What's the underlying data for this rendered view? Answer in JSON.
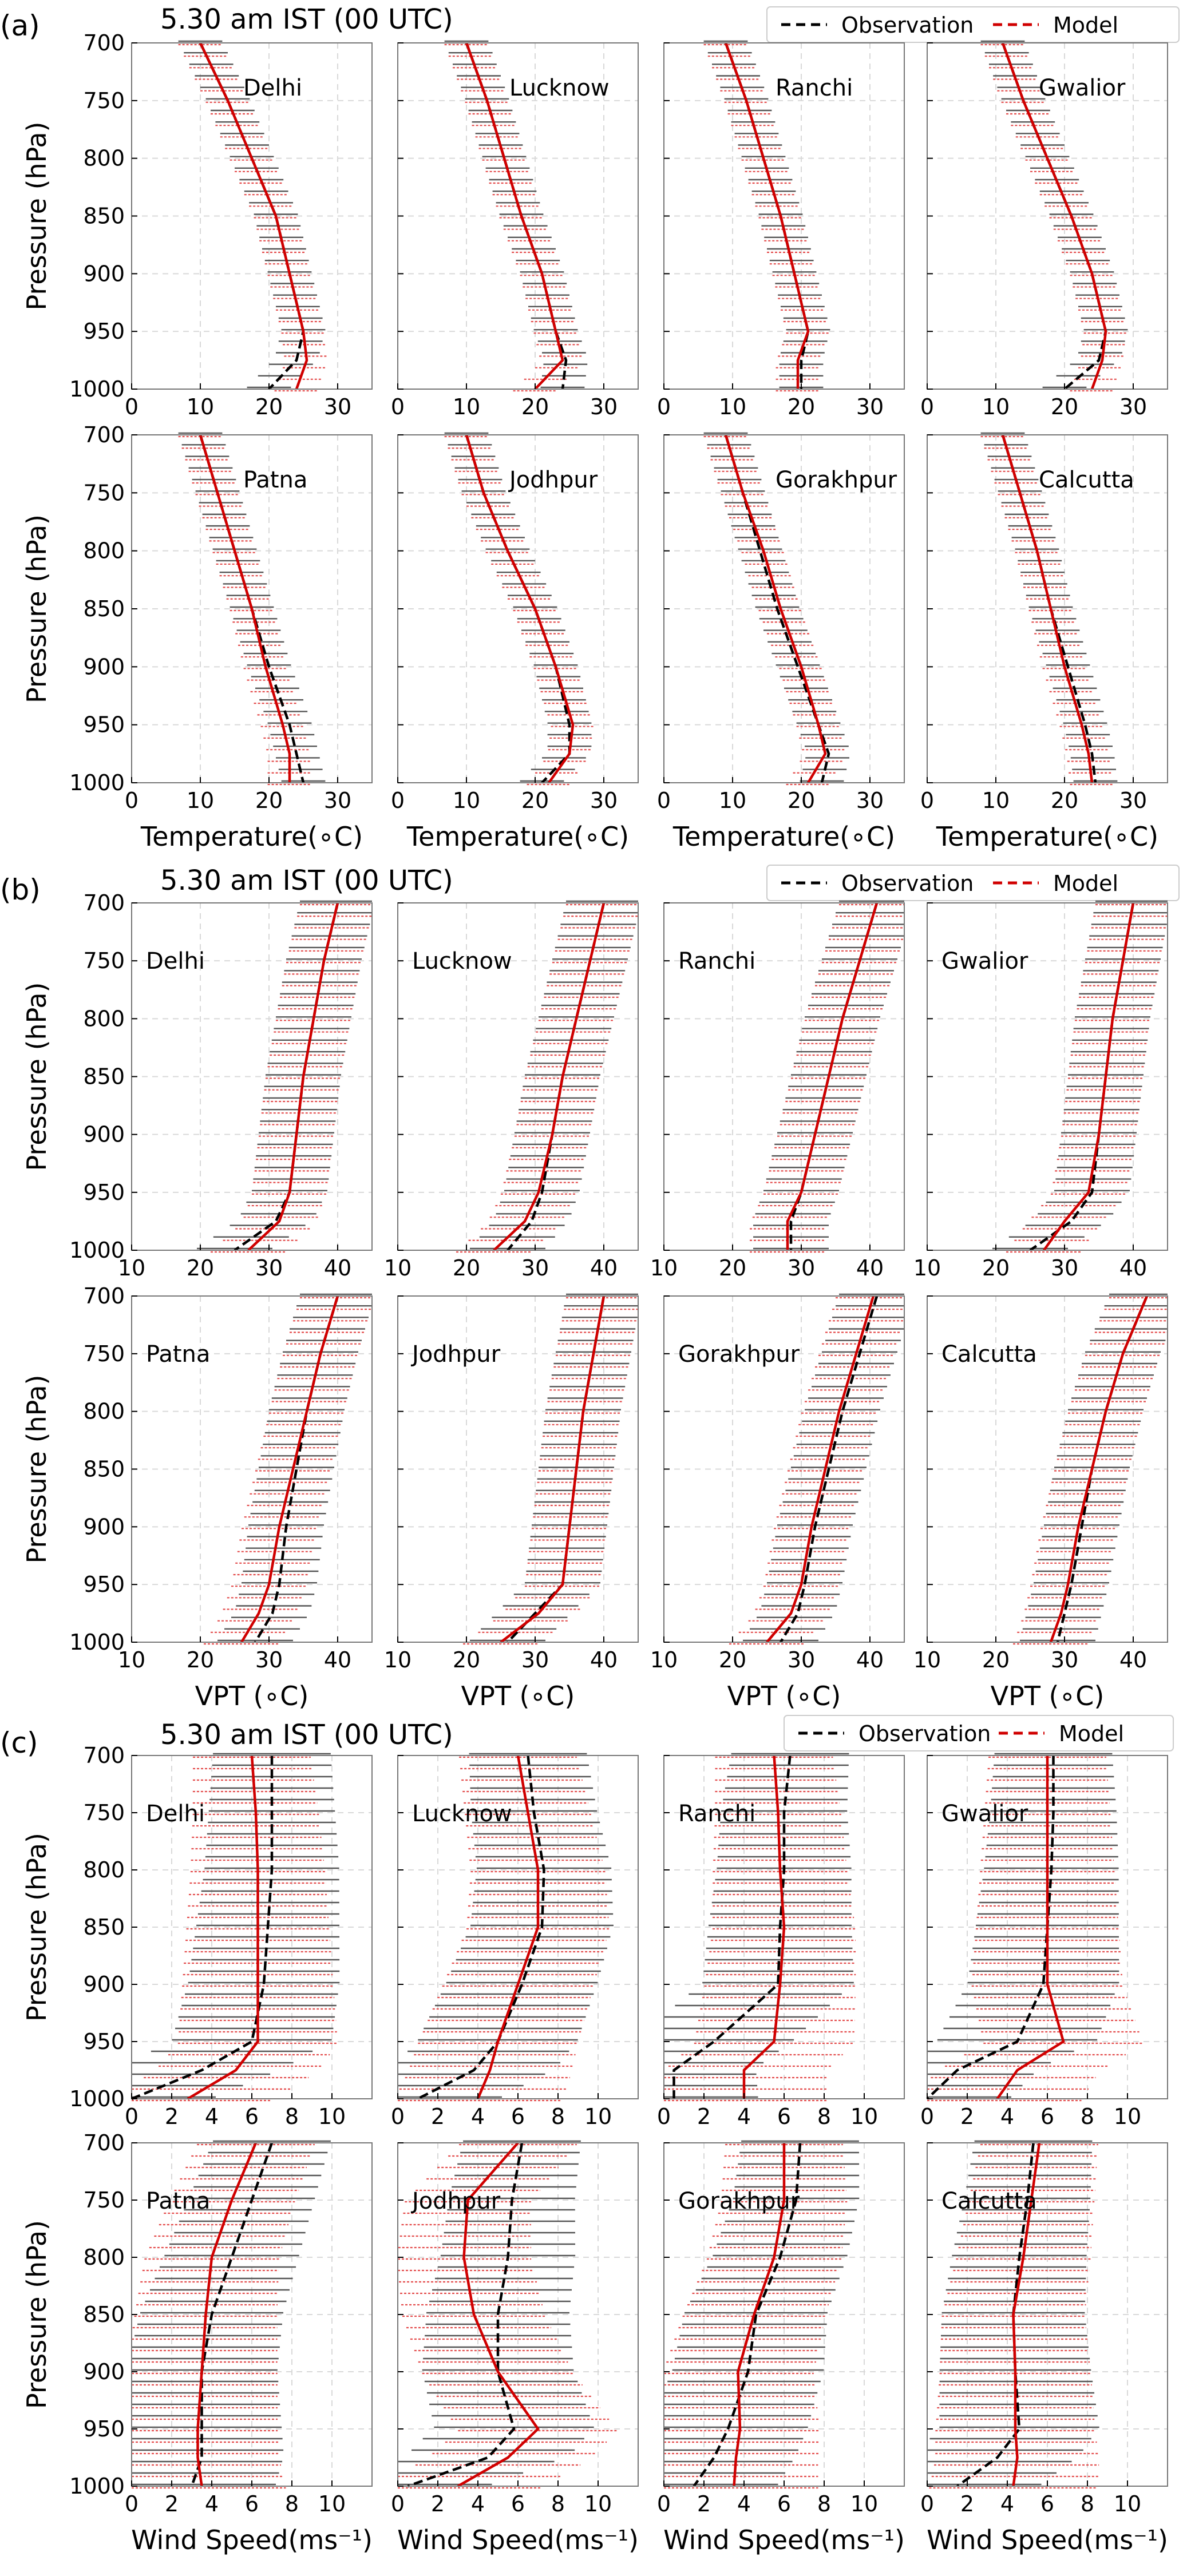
{
  "figure": {
    "sections": [
      {
        "label": "(a)",
        "title": "5.30 am IST (00 UTC)",
        "legend": {
          "position": "top-right",
          "items": [
            "Observation",
            "Model"
          ]
        }
      },
      {
        "label": "(b)",
        "title": "5.30 am IST (00 UTC)",
        "legend": {
          "position": "top-right",
          "items": [
            "Observation",
            "Model"
          ]
        }
      },
      {
        "label": "(c)",
        "title": "5.30 am IST (00 UTC)",
        "legend": {
          "position": "top-right",
          "items": [
            "Observation",
            "Model"
          ]
        }
      }
    ]
  },
  "colors": {
    "observation": "#000000",
    "model": "#d00000"
  },
  "chart_data": [
    {
      "type": "line",
      "section": "(a)",
      "ylabel": "Pressure (hPa)",
      "xlabel": "Temperature(∘C)",
      "xlim": [
        0,
        35
      ],
      "ylim": [
        1000,
        700
      ],
      "xticks": [
        0,
        10,
        20,
        30
      ],
      "yticks": [
        700,
        750,
        800,
        850,
        900,
        950,
        1000
      ],
      "grid": true,
      "pressure": [
        700,
        750,
        800,
        850,
        900,
        950,
        975,
        1000
      ],
      "panels": [
        {
          "station": "Delhi",
          "obs": [
            10,
            14,
            17.5,
            21,
            23,
            25,
            24,
            20
          ],
          "model": [
            10,
            14,
            17.5,
            21,
            23,
            25,
            25.5,
            24
          ]
        },
        {
          "station": "Lucknow",
          "obs": [
            10,
            13,
            15.5,
            18,
            21,
            23,
            24.5,
            24
          ],
          "model": [
            10,
            13,
            15.5,
            18,
            21,
            23,
            24,
            20
          ]
        },
        {
          "station": "Ranchi",
          "obs": [
            9,
            12,
            14.5,
            17,
            19,
            21,
            20,
            20
          ],
          "model": [
            9,
            12,
            14.5,
            17,
            19,
            21,
            19.5,
            19.5
          ]
        },
        {
          "station": "Gwalior",
          "obs": [
            11,
            14,
            17.5,
            21,
            24,
            26,
            25,
            20
          ],
          "model": [
            11,
            14,
            17.5,
            21,
            24,
            26,
            25.5,
            24
          ]
        },
        {
          "station": "Patna",
          "obs": [
            10,
            12.5,
            15,
            17.5,
            20,
            23,
            24,
            25
          ],
          "model": [
            10,
            12.5,
            15,
            17.5,
            19.5,
            22,
            23,
            23
          ]
        },
        {
          "station": "Jodhpur",
          "obs": [
            10,
            12.5,
            16,
            20,
            23,
            25,
            25,
            21
          ],
          "model": [
            10,
            12.5,
            16,
            20,
            23,
            25.5,
            25,
            22
          ]
        },
        {
          "station": "Gorakhpur",
          "obs": [
            9,
            11.5,
            14,
            16.5,
            19.5,
            22.5,
            24,
            23
          ],
          "model": [
            9,
            11.5,
            14.5,
            17,
            20,
            22.5,
            23.5,
            21
          ]
        },
        {
          "station": "Calcutta",
          "obs": [
            11,
            13.5,
            16,
            18,
            20.5,
            23,
            24,
            24.5
          ],
          "model": [
            11,
            13.5,
            16,
            18,
            20,
            22.5,
            23.5,
            24
          ]
        }
      ]
    },
    {
      "type": "line",
      "section": "(b)",
      "ylabel": "Pressure (hPa)",
      "xlabel": "VPT (∘C)",
      "xlim": [
        10,
        45
      ],
      "ylim": [
        1000,
        700
      ],
      "xticks": [
        10,
        20,
        30,
        40
      ],
      "yticks": [
        700,
        750,
        800,
        850,
        900,
        950,
        1000
      ],
      "grid": true,
      "pressure": [
        700,
        750,
        800,
        850,
        900,
        950,
        975,
        1000
      ],
      "panels": [
        {
          "station": "Delhi",
          "obs": [
            40,
            38,
            36.5,
            35,
            34,
            33,
            31,
            25
          ],
          "model": [
            40,
            38,
            36.5,
            35,
            34,
            33,
            31.5,
            27
          ]
        },
        {
          "station": "Lucknow",
          "obs": [
            40,
            38,
            36,
            34,
            32.5,
            31,
            29.5,
            26
          ],
          "model": [
            40,
            38,
            36,
            34,
            32.5,
            30.5,
            28.5,
            24
          ]
        },
        {
          "station": "Ranchi",
          "obs": [
            41,
            38.5,
            36,
            34,
            32,
            30,
            28.5,
            28.5
          ],
          "model": [
            41,
            38.5,
            36,
            34,
            32,
            30,
            28,
            28
          ]
        },
        {
          "station": "Gwalior",
          "obs": [
            40,
            38.5,
            37,
            36,
            35,
            34,
            31,
            25
          ],
          "model": [
            40,
            38.5,
            37,
            36,
            35,
            33.5,
            30,
            27
          ]
        },
        {
          "station": "Patna",
          "obs": [
            40,
            37.5,
            35.5,
            34,
            32.5,
            31.5,
            30.5,
            28
          ],
          "model": [
            40,
            37.5,
            35.5,
            33.5,
            31.5,
            30,
            28.5,
            26
          ]
        },
        {
          "station": "Jodhpur",
          "obs": [
            40,
            38.5,
            37,
            36,
            35,
            34,
            30,
            26
          ],
          "model": [
            40,
            38.5,
            37,
            36,
            35,
            34,
            30.5,
            25
          ]
        },
        {
          "station": "Gorakhpur",
          "obs": [
            41,
            38.5,
            36,
            34,
            32,
            30.5,
            29.5,
            27
          ],
          "model": [
            40.5,
            38,
            35.5,
            33.5,
            31.5,
            30,
            28.5,
            25
          ]
        },
        {
          "station": "Calcutta",
          "obs": [
            42,
            38.5,
            36,
            34,
            32.5,
            31,
            30,
            29
          ],
          "model": [
            42,
            38.5,
            36,
            34,
            32,
            30.5,
            29.5,
            28
          ]
        }
      ]
    },
    {
      "type": "line",
      "section": "(c)",
      "ylabel": "Pressure (hPa)",
      "xlabel": "Wind Speed(ms⁻¹)",
      "xlim": [
        0,
        12
      ],
      "ylim": [
        1000,
        700
      ],
      "xticks": [
        0,
        2,
        4,
        6,
        8,
        10
      ],
      "yticks": [
        700,
        750,
        800,
        850,
        900,
        950,
        1000
      ],
      "grid": true,
      "pressure": [
        700,
        750,
        800,
        850,
        900,
        950,
        975,
        1000
      ],
      "panels": [
        {
          "station": "Delhi",
          "obs": [
            7,
            7,
            7,
            6.8,
            6.6,
            6.0,
            3.5,
            0
          ],
          "model": [
            6.0,
            6.2,
            6.3,
            6.3,
            6.3,
            6.3,
            5.2,
            2.8
          ]
        },
        {
          "station": "Lucknow",
          "obs": [
            6.5,
            6.8,
            7.3,
            7.2,
            6.2,
            5.0,
            3.8,
            1.0
          ],
          "model": [
            6.0,
            6.5,
            7.0,
            7.0,
            6.0,
            5.0,
            4.6,
            4.0
          ]
        },
        {
          "station": "Ranchi",
          "obs": [
            6.3,
            6.0,
            6.0,
            5.8,
            5.7,
            2.5,
            0.5,
            0.5
          ],
          "model": [
            5.5,
            5.7,
            5.8,
            6.0,
            5.8,
            5.5,
            4.0,
            4.0
          ]
        },
        {
          "station": "Gwalior",
          "obs": [
            6.3,
            6.3,
            6.2,
            6.0,
            5.8,
            4.5,
            1.5,
            0
          ],
          "model": [
            6.0,
            6.0,
            6.0,
            6.0,
            6.0,
            6.8,
            4.5,
            3.5
          ]
        },
        {
          "station": "Patna",
          "obs": [
            7.0,
            6.0,
            5.0,
            4.0,
            3.5,
            3.5,
            3.5,
            3.0
          ],
          "model": [
            6.2,
            5.0,
            4.0,
            3.7,
            3.5,
            3.3,
            3.3,
            3.5
          ]
        },
        {
          "station": "Jodhpur",
          "obs": [
            6.2,
            5.7,
            5.5,
            5.0,
            5.0,
            5.8,
            4.5,
            0.5
          ],
          "model": [
            6.0,
            3.5,
            3.3,
            3.8,
            5.0,
            7.0,
            5.5,
            3.0
          ]
        },
        {
          "station": "Gorakhpur",
          "obs": [
            6.8,
            6.6,
            5.8,
            4.6,
            4.2,
            3.2,
            2.5,
            1.5
          ],
          "model": [
            6.0,
            6.0,
            5.5,
            4.5,
            3.7,
            3.8,
            3.6,
            3.5
          ]
        },
        {
          "station": "Calcutta",
          "obs": [
            5.3,
            5.0,
            4.6,
            4.3,
            4.4,
            4.6,
            3.5,
            1.5
          ],
          "model": [
            5.6,
            5.2,
            4.8,
            4.3,
            4.4,
            4.4,
            4.5,
            4.3
          ]
        }
      ]
    }
  ]
}
